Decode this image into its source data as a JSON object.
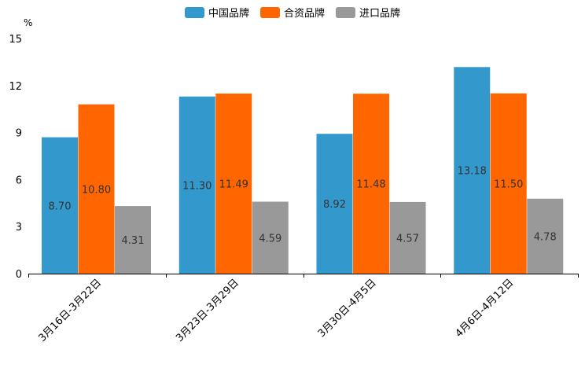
{
  "chart_data": {
    "type": "bar",
    "title": "",
    "xlabel": "",
    "ylabel": "%",
    "ylim": [
      0,
      15
    ],
    "yticks": [
      0,
      3,
      6,
      9,
      12,
      15
    ],
    "grid": false,
    "legend_position": "top-center",
    "categories": [
      "3月16日-3月22日",
      "3月23日-3月29日",
      "3月30日-4月5日",
      "4月6日-4月12日"
    ],
    "series": [
      {
        "name": "中国品牌",
        "color": "#3399cc",
        "values": [
          8.7,
          11.3,
          8.92,
          13.18
        ],
        "labels": [
          "8.70",
          "11.30",
          "8.92",
          "13.18"
        ]
      },
      {
        "name": "合资品牌",
        "color": "#ff6600",
        "values": [
          10.8,
          11.49,
          11.48,
          11.5
        ],
        "labels": [
          "10.80",
          "11.49",
          "11.48",
          "11.50"
        ]
      },
      {
        "name": "进口品牌",
        "color": "#999999",
        "values": [
          4.31,
          4.59,
          4.57,
          4.78
        ],
        "labels": [
          "4.31",
          "4.59",
          "4.57",
          "4.78"
        ]
      }
    ]
  }
}
